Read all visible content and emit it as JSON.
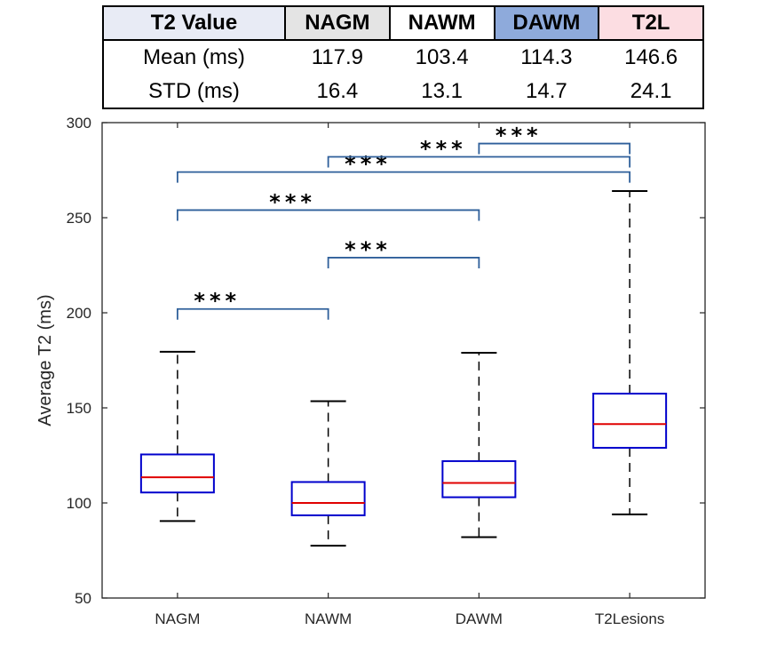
{
  "summary_table": {
    "header": {
      "label": "T2 Value",
      "columns": [
        "NAGM",
        "NAWM",
        "DAWM",
        "T2L"
      ]
    },
    "header_colors": [
      "#e8ebf5",
      "#e4e4e4",
      "#ffffff",
      "#8eaadb",
      "#fcdde2"
    ],
    "rows": [
      {
        "label": "Mean (ms)",
        "values": [
          "117.9",
          "103.4",
          "114.3",
          "146.6"
        ]
      },
      {
        "label": "STD (ms)",
        "values": [
          "16.4",
          "13.1",
          "14.7",
          "24.1"
        ]
      }
    ]
  },
  "chart_data": {
    "type": "boxplot",
    "title": "",
    "xlabel": "",
    "ylabel": "Average T2 (ms)",
    "ylim": [
      50,
      300
    ],
    "yticks": [
      50,
      100,
      150,
      200,
      250,
      300
    ],
    "categories": [
      "NAGM",
      "NAWM",
      "DAWM",
      "T2Lesions"
    ],
    "boxes": [
      {
        "name": "NAGM",
        "whisker_low": 90.5,
        "q1": 105.5,
        "median": 113.5,
        "q3": 125.5,
        "whisker_high": 179.5
      },
      {
        "name": "NAWM",
        "whisker_low": 77.5,
        "q1": 93.5,
        "median": 100,
        "q3": 111,
        "whisker_high": 153.5
      },
      {
        "name": "DAWM",
        "whisker_low": 82,
        "q1": 103,
        "median": 110.5,
        "q3": 122,
        "whisker_high": 179
      },
      {
        "name": "T2Lesions",
        "whisker_low": 94,
        "q1": 129,
        "median": 141.5,
        "q3": 157.5,
        "whisker_high": 264
      }
    ],
    "significance": [
      {
        "from": "NAGM",
        "to": "NAWM",
        "y": 202,
        "label": "***"
      },
      {
        "from": "NAWM",
        "to": "DAWM",
        "y": 229,
        "label": "***"
      },
      {
        "from": "NAGM",
        "to": "DAWM",
        "y": 254,
        "label": "***"
      },
      {
        "from": "NAGM",
        "to": "T2Lesions",
        "y": 274,
        "label": "***"
      },
      {
        "from": "NAWM",
        "to": "T2Lesions",
        "y": 282,
        "label": "***"
      },
      {
        "from": "DAWM",
        "to": "T2Lesions",
        "y": 289,
        "label": "***"
      }
    ],
    "colors": {
      "box": "#0000cc",
      "median": "#e00000",
      "whisker": "#000000",
      "bracket": "#2e5f9a",
      "axis": "#262626"
    }
  }
}
